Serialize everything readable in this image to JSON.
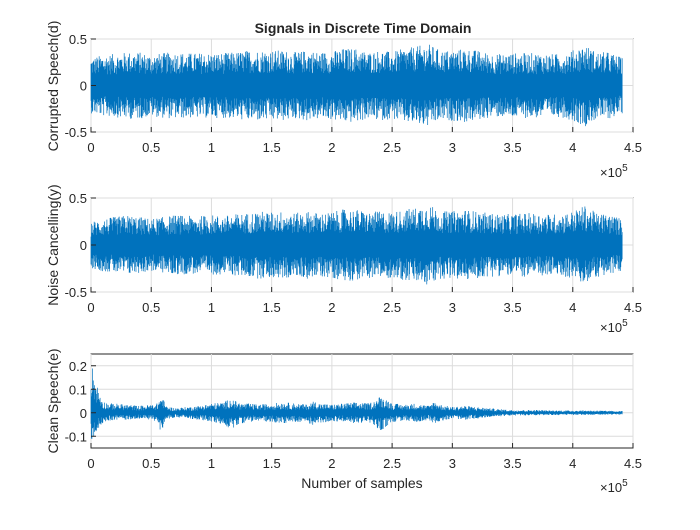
{
  "figure_title": "Signals in Discrete Time Domain",
  "chart_data": [
    {
      "type": "line",
      "title": "Signals in Discrete Time Domain",
      "xlabel": "",
      "ylabel": "Corrupted Speech(d)",
      "xlim": [
        0,
        450000
      ],
      "ylim": [
        -0.5,
        0.5
      ],
      "x_ticks": [
        "0",
        "0.5",
        "1",
        "1.5",
        "2",
        "2.5",
        "3",
        "3.5",
        "4",
        "4.5"
      ],
      "y_ticks": [
        "0.5",
        "0",
        "-0.5"
      ],
      "x_exponent": "×10",
      "x_exponent_power": "5",
      "grid": true,
      "color": "#0072BD",
      "series": [
        {
          "x": [
            0,
            10000,
            20000,
            30000,
            40000,
            50000,
            60000,
            70000,
            80000,
            90000,
            100000,
            110000,
            120000,
            130000,
            140000,
            150000,
            160000,
            170000,
            180000,
            190000,
            200000,
            210000,
            220000,
            230000,
            240000,
            250000,
            260000,
            270000,
            280000,
            290000,
            300000,
            310000,
            320000,
            330000,
            340000,
            350000,
            360000,
            370000,
            380000,
            390000,
            400000,
            410000,
            420000,
            430000,
            441000
          ],
          "envelope": [
            0.3,
            0.33,
            0.34,
            0.36,
            0.36,
            0.33,
            0.35,
            0.36,
            0.35,
            0.35,
            0.35,
            0.35,
            0.36,
            0.38,
            0.38,
            0.38,
            0.38,
            0.36,
            0.38,
            0.36,
            0.37,
            0.4,
            0.4,
            0.36,
            0.38,
            0.36,
            0.4,
            0.42,
            0.45,
            0.38,
            0.38,
            0.4,
            0.38,
            0.35,
            0.34,
            0.35,
            0.35,
            0.35,
            0.34,
            0.34,
            0.38,
            0.44,
            0.36,
            0.36,
            0.3
          ]
        }
      ]
    },
    {
      "type": "line",
      "title": "",
      "xlabel": "",
      "ylabel": "Noise Cancelling(y)",
      "xlim": [
        0,
        450000
      ],
      "ylim": [
        -0.5,
        0.5
      ],
      "x_ticks": [
        "0",
        "0.5",
        "1",
        "1.5",
        "2",
        "2.5",
        "3",
        "3.5",
        "4",
        "4.5"
      ],
      "y_ticks": [
        "0.5",
        "0",
        "-0.5"
      ],
      "x_exponent": "×10",
      "x_exponent_power": "5",
      "grid": true,
      "color": "#0072BD",
      "series": [
        {
          "x": [
            0,
            10000,
            20000,
            30000,
            40000,
            50000,
            60000,
            70000,
            80000,
            90000,
            100000,
            110000,
            120000,
            130000,
            140000,
            150000,
            160000,
            170000,
            180000,
            190000,
            200000,
            210000,
            220000,
            230000,
            240000,
            250000,
            260000,
            270000,
            280000,
            290000,
            300000,
            310000,
            320000,
            330000,
            340000,
            350000,
            360000,
            370000,
            380000,
            390000,
            400000,
            410000,
            420000,
            430000,
            441000
          ],
          "envelope": [
            0.25,
            0.28,
            0.3,
            0.32,
            0.3,
            0.28,
            0.3,
            0.32,
            0.31,
            0.31,
            0.32,
            0.31,
            0.33,
            0.34,
            0.36,
            0.35,
            0.36,
            0.34,
            0.36,
            0.34,
            0.35,
            0.38,
            0.38,
            0.35,
            0.36,
            0.35,
            0.38,
            0.4,
            0.44,
            0.36,
            0.36,
            0.38,
            0.36,
            0.34,
            0.33,
            0.33,
            0.34,
            0.34,
            0.33,
            0.33,
            0.36,
            0.42,
            0.34,
            0.33,
            0.28
          ]
        }
      ]
    },
    {
      "type": "line",
      "title": "",
      "xlabel": "Number of samples",
      "ylabel": "Clean Speech(e)",
      "xlim": [
        0,
        450000
      ],
      "ylim": [
        -0.15,
        0.25
      ],
      "x_ticks": [
        "0",
        "0.5",
        "1",
        "1.5",
        "2",
        "2.5",
        "3",
        "3.5",
        "4",
        "4.5"
      ],
      "y_ticks": [
        "0.2",
        "0.1",
        "0",
        "-0.1"
      ],
      "x_exponent": "×10",
      "x_exponent_power": "5",
      "grid": true,
      "color": "#0072BD",
      "series": [
        {
          "x": [
            0,
            3000,
            6000,
            10000,
            15000,
            20000,
            30000,
            40000,
            50000,
            55000,
            58000,
            60000,
            62000,
            65000,
            70000,
            80000,
            90000,
            100000,
            110000,
            115000,
            120000,
            125000,
            130000,
            140000,
            150000,
            160000,
            170000,
            180000,
            185000,
            190000,
            200000,
            210000,
            220000,
            230000,
            235000,
            240000,
            245000,
            250000,
            260000,
            270000,
            280000,
            285000,
            290000,
            300000,
            310000,
            320000,
            330000,
            340000,
            350000,
            360000,
            370000,
            380000,
            390000,
            400000,
            410000,
            420000,
            430000,
            441000
          ],
          "upper": [
            0.22,
            0.16,
            0.1,
            0.05,
            0.04,
            0.04,
            0.035,
            0.03,
            0.035,
            0.04,
            0.07,
            0.06,
            0.03,
            0.025,
            0.02,
            0.025,
            0.03,
            0.04,
            0.045,
            0.06,
            0.05,
            0.04,
            0.04,
            0.035,
            0.04,
            0.045,
            0.04,
            0.035,
            0.05,
            0.04,
            0.035,
            0.04,
            0.045,
            0.04,
            0.05,
            0.07,
            0.06,
            0.04,
            0.035,
            0.04,
            0.03,
            0.05,
            0.035,
            0.025,
            0.03,
            0.025,
            0.02,
            0.015,
            0.012,
            0.012,
            0.012,
            0.01,
            0.01,
            0.01,
            0.01,
            0.01,
            0.008,
            0.008
          ],
          "lower": [
            -0.13,
            -0.1,
            -0.07,
            -0.04,
            -0.035,
            -0.03,
            -0.03,
            -0.025,
            -0.03,
            -0.04,
            -0.08,
            -0.07,
            -0.03,
            -0.025,
            -0.02,
            -0.025,
            -0.03,
            -0.04,
            -0.05,
            -0.07,
            -0.06,
            -0.045,
            -0.04,
            -0.035,
            -0.04,
            -0.045,
            -0.04,
            -0.04,
            -0.06,
            -0.045,
            -0.035,
            -0.04,
            -0.045,
            -0.04,
            -0.055,
            -0.08,
            -0.06,
            -0.04,
            -0.035,
            -0.04,
            -0.03,
            -0.045,
            -0.035,
            -0.025,
            -0.03,
            -0.025,
            -0.02,
            -0.015,
            -0.012,
            -0.012,
            -0.012,
            -0.01,
            -0.01,
            -0.01,
            -0.01,
            -0.01,
            -0.008,
            -0.008
          ]
        }
      ]
    }
  ]
}
